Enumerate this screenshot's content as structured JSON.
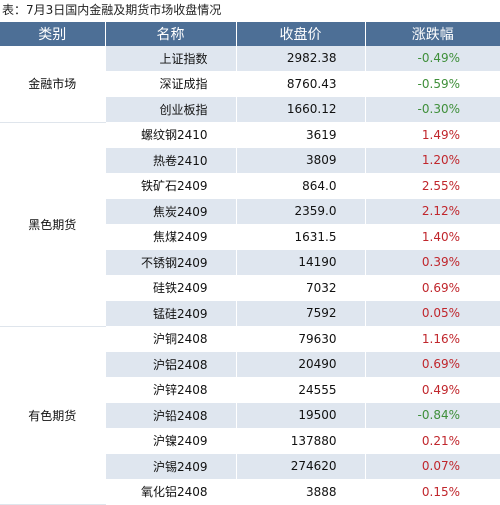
{
  "caption": "表：7月3日国内金融及期货市场收盘情况",
  "columns": [
    "类别",
    "名称",
    "收盘价",
    "涨跌幅"
  ],
  "colors": {
    "header_bg": "#4d6f96",
    "stripe": "#dfe6ef",
    "up": "#c0262c",
    "down": "#3f8f3a"
  },
  "groups": [
    {
      "category": "金融市场",
      "rows": [
        {
          "name": "上证指数",
          "close": "2982.38",
          "change": "-0.49%",
          "dir": "down"
        },
        {
          "name": "深证成指",
          "close": "8760.43",
          "change": "-0.59%",
          "dir": "down"
        },
        {
          "name": "创业板指",
          "close": "1660.12",
          "change": "-0.30%",
          "dir": "down"
        }
      ]
    },
    {
      "category": "黑色期货",
      "rows": [
        {
          "name": "螺纹钢2410",
          "close": "3619",
          "change": "1.49%",
          "dir": "up"
        },
        {
          "name": "热卷2410",
          "close": "3809",
          "change": "1.20%",
          "dir": "up"
        },
        {
          "name": "铁矿石2409",
          "close": "864.0",
          "change": "2.55%",
          "dir": "up"
        },
        {
          "name": "焦炭2409",
          "close": "2359.0",
          "change": "2.12%",
          "dir": "up"
        },
        {
          "name": "焦煤2409",
          "close": "1631.5",
          "change": "1.40%",
          "dir": "up"
        },
        {
          "name": "不锈钢2409",
          "close": "14190",
          "change": "0.39%",
          "dir": "up"
        },
        {
          "name": "硅铁2409",
          "close": "7032",
          "change": "0.69%",
          "dir": "up"
        },
        {
          "name": "锰硅2409",
          "close": "7592",
          "change": "0.05%",
          "dir": "up"
        }
      ]
    },
    {
      "category": "有色期货",
      "rows": [
        {
          "name": "沪铜2408",
          "close": "79630",
          "change": "1.16%",
          "dir": "up"
        },
        {
          "name": "沪铝2408",
          "close": "20490",
          "change": "0.69%",
          "dir": "up"
        },
        {
          "name": "沪锌2408",
          "close": "24555",
          "change": "0.49%",
          "dir": "up"
        },
        {
          "name": "沪铅2408",
          "close": "19500",
          "change": "-0.84%",
          "dir": "down"
        },
        {
          "name": "沪镍2409",
          "close": "137880",
          "change": "0.21%",
          "dir": "up"
        },
        {
          "name": "沪锡2409",
          "close": "274620",
          "change": "0.07%",
          "dir": "up"
        },
        {
          "name": "氧化铝2408",
          "close": "3888",
          "change": "0.15%",
          "dir": "up"
        }
      ]
    }
  ]
}
